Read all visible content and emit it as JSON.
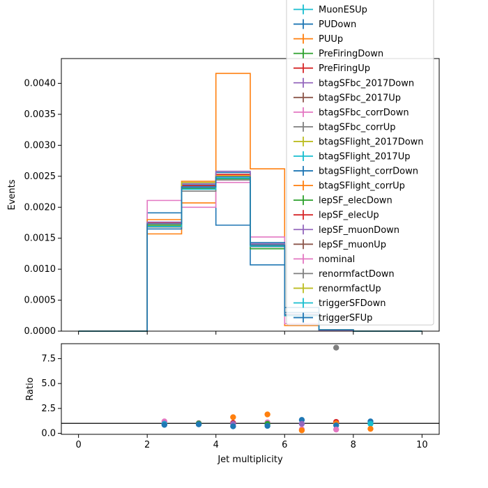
{
  "chart_data": [
    {
      "type": "step",
      "ylabel": "Events",
      "xlim": [
        -0.5,
        10.5
      ],
      "ylim": [
        0,
        0.0044
      ],
      "yticks": [
        "0.0000",
        "0.0005",
        "0.0010",
        "0.0015",
        "0.0020",
        "0.0025",
        "0.0030",
        "0.0035",
        "0.0040"
      ],
      "bin_edges": [
        0,
        2,
        3,
        4,
        5,
        6,
        7,
        8,
        9,
        10
      ],
      "legend_position": "upper-right",
      "legend_entries": [
        {
          "name": "MuonESUp",
          "color": "#17becf"
        },
        {
          "name": "PUDown",
          "color": "#1f77b4"
        },
        {
          "name": "PUUp",
          "color": "#ff7f0e"
        },
        {
          "name": "PreFiringDown",
          "color": "#2ca02c"
        },
        {
          "name": "PreFiringUp",
          "color": "#d62728"
        },
        {
          "name": "btagSFbc_2017Down",
          "color": "#9467bd"
        },
        {
          "name": "btagSFbc_2017Up",
          "color": "#8c564b"
        },
        {
          "name": "btagSFbc_corrDown",
          "color": "#e377c2"
        },
        {
          "name": "btagSFbc_corrUp",
          "color": "#7f7f7f"
        },
        {
          "name": "btagSFlight_2017Down",
          "color": "#bcbd22"
        },
        {
          "name": "btagSFlight_2017Up",
          "color": "#17becf"
        },
        {
          "name": "btagSFlight_corrDown",
          "color": "#1f77b4"
        },
        {
          "name": "btagSFlight_corrUp",
          "color": "#ff7f0e"
        },
        {
          "name": "lepSF_elecDown",
          "color": "#2ca02c"
        },
        {
          "name": "lepSF_elecUp",
          "color": "#d62728"
        },
        {
          "name": "lepSF_muonDown",
          "color": "#9467bd"
        },
        {
          "name": "lepSF_muonUp",
          "color": "#8c564b"
        },
        {
          "name": "nominal",
          "color": "#e377c2"
        },
        {
          "name": "renormfactDown",
          "color": "#7f7f7f"
        },
        {
          "name": "renormfactUp",
          "color": "#bcbd22"
        },
        {
          "name": "triggerSFDown",
          "color": "#17becf"
        },
        {
          "name": "triggerSFUp",
          "color": "#1f77b4"
        }
      ],
      "series": [
        {
          "color": "#1f77b4",
          "values": [
            0,
            0.00191,
            0.00232,
            0.00171,
            0.00107,
            0.00038,
            1e-05,
            0,
            0
          ]
        },
        {
          "color": "#ff7f0e",
          "values": [
            0,
            0.00157,
            0.00207,
            0.00416,
            0.00262,
            9e-05,
            1e-05,
            0,
            0
          ]
        },
        {
          "color": "#e377c2",
          "values": [
            0,
            0.00211,
            0.002,
            0.0024,
            0.00152,
            0.00012,
            1e-05,
            0,
            0
          ]
        },
        {
          "color": "#1f77b4",
          "values": [
            0,
            0.00165,
            0.00236,
            0.00256,
            0.00143,
            0.0003,
            2e-05,
            0,
            0
          ]
        },
        {
          "color": "#ff7f0e",
          "values": [
            0,
            0.0018,
            0.00242,
            0.00252,
            0.0014,
            0.00027,
            2e-05,
            0,
            0
          ]
        },
        {
          "color": "#2ca02c",
          "values": [
            0,
            0.0017,
            0.0023,
            0.00246,
            0.00133,
            0.00025,
            2e-05,
            0,
            0
          ]
        },
        {
          "color": "#d62728",
          "values": [
            0,
            0.00175,
            0.00235,
            0.00253,
            0.00138,
            0.00026,
            2e-05,
            0,
            0
          ]
        },
        {
          "color": "#9467bd",
          "values": [
            0,
            0.00176,
            0.00238,
            0.00258,
            0.00141,
            0.00027,
            2e-05,
            0,
            0
          ]
        },
        {
          "color": "#7f7f7f",
          "values": [
            0,
            0.00168,
            0.00226,
            0.00244,
            0.00136,
            0.00026,
            2e-05,
            0,
            0
          ]
        },
        {
          "color": "#bcbd22",
          "values": [
            0,
            0.00172,
            0.0024,
            0.0025,
            0.00139,
            0.00026,
            2e-05,
            0,
            0
          ]
        },
        {
          "color": "#17becf",
          "values": [
            0,
            0.00169,
            0.00229,
            0.00247,
            0.00137,
            0.00025,
            2e-05,
            0,
            0
          ]
        },
        {
          "color": "#1f77b4",
          "values": [
            0,
            0.00173,
            0.00233,
            0.00249,
            0.00139,
            0.00026,
            2e-05,
            0,
            0
          ]
        }
      ]
    },
    {
      "type": "scatter",
      "ylabel": "Ratio",
      "xlabel": "Jet multiplicity",
      "xlim": [
        -0.5,
        10.5
      ],
      "ylim": [
        -0.1,
        9.0
      ],
      "xticks": [
        "0",
        "2",
        "4",
        "6",
        "8",
        "10"
      ],
      "yticks": [
        "0.0",
        "2.5",
        "5.0",
        "7.5"
      ],
      "reference_line": 1.0,
      "points": [
        {
          "x": 2.5,
          "y": 1.2,
          "color": "#e377c2"
        },
        {
          "x": 2.5,
          "y": 1.0,
          "color": "#9467bd"
        },
        {
          "x": 2.5,
          "y": 0.93,
          "color": "#17becf"
        },
        {
          "x": 2.5,
          "y": 0.85,
          "color": "#1f77b4"
        },
        {
          "x": 3.5,
          "y": 1.02,
          "color": "#7f7f7f"
        },
        {
          "x": 3.5,
          "y": 0.95,
          "color": "#2ca02c"
        },
        {
          "x": 3.5,
          "y": 0.9,
          "color": "#1f77b4"
        },
        {
          "x": 4.5,
          "y": 1.62,
          "color": "#ff7f0e"
        },
        {
          "x": 4.5,
          "y": 1.05,
          "color": "#d62728"
        },
        {
          "x": 4.5,
          "y": 0.95,
          "color": "#9467bd"
        },
        {
          "x": 4.5,
          "y": 0.7,
          "color": "#1f77b4"
        },
        {
          "x": 5.5,
          "y": 1.9,
          "color": "#ff7f0e"
        },
        {
          "x": 5.5,
          "y": 1.1,
          "color": "#e377c2"
        },
        {
          "x": 5.5,
          "y": 0.95,
          "color": "#2ca02c"
        },
        {
          "x": 5.5,
          "y": 0.75,
          "color": "#1f77b4"
        },
        {
          "x": 6.5,
          "y": 1.35,
          "color": "#1f77b4"
        },
        {
          "x": 6.5,
          "y": 0.95,
          "color": "#9467bd"
        },
        {
          "x": 6.5,
          "y": 0.4,
          "color": "#e377c2"
        },
        {
          "x": 6.5,
          "y": 0.3,
          "color": "#ff7f0e"
        },
        {
          "x": 7.5,
          "y": 8.6,
          "color": "#7f7f7f"
        },
        {
          "x": 7.5,
          "y": 1.15,
          "color": "#d62728"
        },
        {
          "x": 7.5,
          "y": 1.0,
          "color": "#ff7f0e"
        },
        {
          "x": 7.5,
          "y": 0.8,
          "color": "#1f77b4"
        },
        {
          "x": 7.5,
          "y": 0.38,
          "color": "#e377c2"
        },
        {
          "x": 8.5,
          "y": 1.2,
          "color": "#1f77b4"
        },
        {
          "x": 8.5,
          "y": 0.95,
          "color": "#17becf"
        },
        {
          "x": 8.5,
          "y": 0.45,
          "color": "#ff7f0e"
        }
      ]
    }
  ]
}
